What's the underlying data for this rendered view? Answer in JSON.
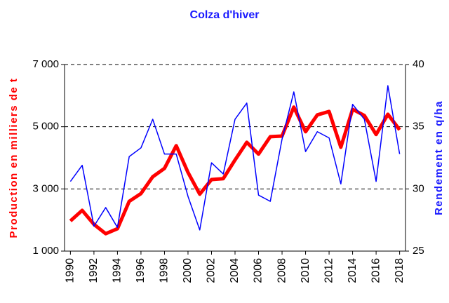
{
  "chart_data": {
    "type": "line",
    "title": "Colza d'hiver",
    "y_label": "Production en milliers de t",
    "y2_label": "Rendement en q/ha",
    "x": [
      1990,
      1991,
      1992,
      1993,
      1994,
      1995,
      1996,
      1997,
      1998,
      1999,
      2000,
      2001,
      2002,
      2003,
      2004,
      2005,
      2006,
      2007,
      2008,
      2009,
      2010,
      2011,
      2012,
      2013,
      2014,
      2015,
      2016,
      2017,
      2018
    ],
    "xlim": [
      1989.5,
      2018.5
    ],
    "xticks": [
      1990,
      1992,
      1994,
      1996,
      1998,
      2000,
      2002,
      2004,
      2006,
      2008,
      2010,
      2012,
      2014,
      2016,
      2018
    ],
    "ylim": [
      1000,
      7000
    ],
    "yticks": [
      {
        "value": 1000,
        "label": "1 000"
      },
      {
        "value": 3000,
        "label": "3 000"
      },
      {
        "value": 5000,
        "label": "5 000"
      },
      {
        "value": 7000,
        "label": "7 000"
      }
    ],
    "y2lim": [
      25,
      40
    ],
    "y2ticks": [
      25,
      30,
      35,
      40
    ],
    "grid": true,
    "series": [
      {
        "name": "Production",
        "color": "#ff0000",
        "axis": "y",
        "width": 5,
        "values": [
          1970,
          2310,
          1860,
          1560,
          1720,
          2600,
          2850,
          3390,
          3660,
          4390,
          3530,
          2830,
          3300,
          3330,
          3930,
          4500,
          4120,
          4680,
          4700,
          5630,
          4840,
          5380,
          5490,
          4340,
          5560,
          5360,
          4750,
          5400,
          4900
        ]
      },
      {
        "name": "Rendement",
        "color": "#0000ff",
        "axis": "y2",
        "width": 1.5,
        "values": [
          30.6,
          31.9,
          27.0,
          28.5,
          26.9,
          32.6,
          33.3,
          35.6,
          32.8,
          32.8,
          29.4,
          26.7,
          32.1,
          31.2,
          35.6,
          36.9,
          29.5,
          29.0,
          34.0,
          37.8,
          33.0,
          34.6,
          34.1,
          30.4,
          36.8,
          35.6,
          30.6,
          38.3,
          32.8
        ]
      }
    ]
  }
}
